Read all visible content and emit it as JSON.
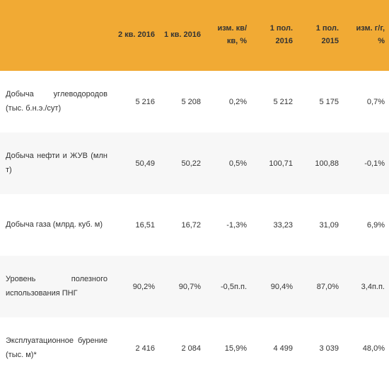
{
  "table": {
    "header_bg": "#f1aa34",
    "row_stripe_bg": "#f7f7f7",
    "row_plain_bg": "#ffffff",
    "text_color": "#333333",
    "columns": [
      "",
      "2 кв. 2016",
      "1 кв. 2016",
      "изм. кв/кв, %",
      "1 пол. 2016",
      "1 пол. 2015",
      "изм. г/г, %"
    ],
    "rows": [
      {
        "label": "Добыча углеводородов (тыс. б.н.э./сут)",
        "values": [
          "5 216",
          "5 208",
          "0,2%",
          "5 212",
          "5 175",
          "0,7%"
        ]
      },
      {
        "label": "Добыча нефти и ЖУВ (млн т)",
        "values": [
          "50,49",
          "50,22",
          "0,5%",
          "100,71",
          "100,88",
          "-0,1%"
        ]
      },
      {
        "label": "Добыча газа (млрд. куб. м)",
        "values": [
          "16,51",
          "16,72",
          "-1,3%",
          "33,23",
          "31,09",
          "6,9%"
        ]
      },
      {
        "label": "Уровень полезного использования ПНГ",
        "values": [
          "90,2%",
          "90,7%",
          "-0,5п.п.",
          "90,4%",
          "87,0%",
          "3,4п.п."
        ]
      },
      {
        "label": "Эксплуатационное бурение (тыс. м)*",
        "values": [
          "2 416",
          "2 084",
          "15,9%",
          "4 499",
          "3 039",
          "48,0%"
        ]
      }
    ]
  }
}
